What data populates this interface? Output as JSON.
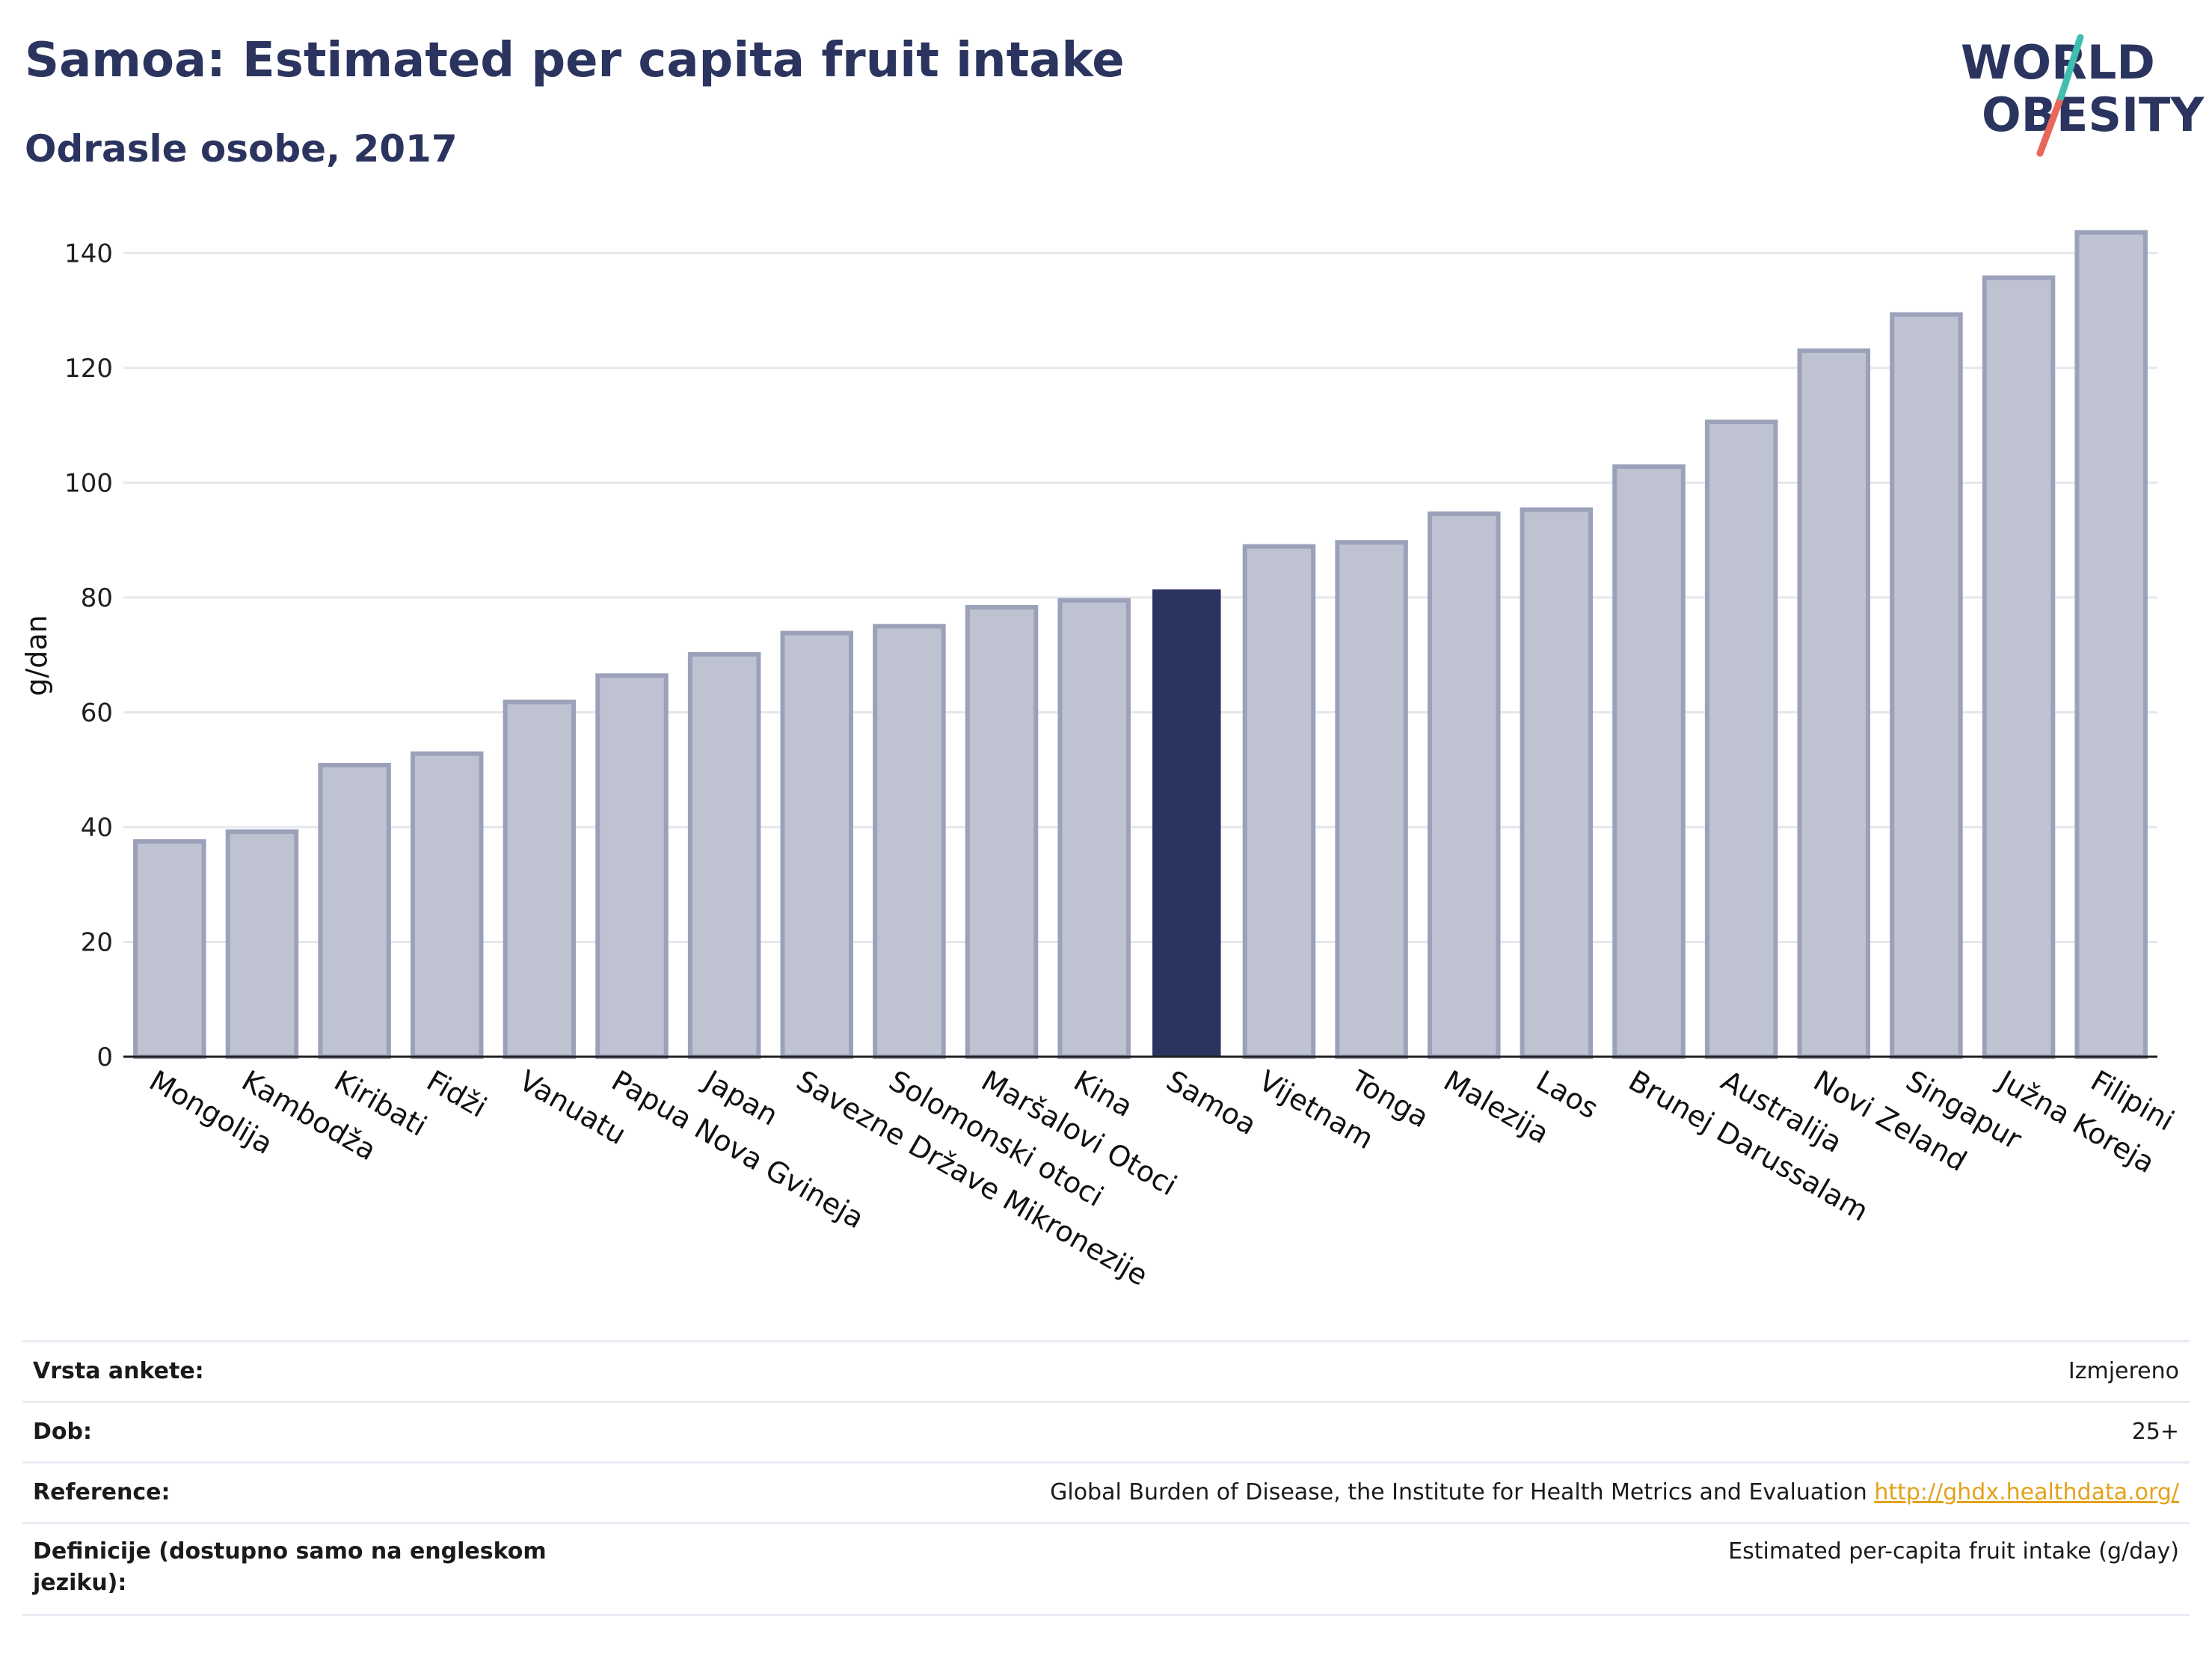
{
  "title": "Samoa: Estimated per capita fruit intake",
  "subtitle": "Odrasle osobe, 2017",
  "logo": {
    "line1": "WORLD",
    "line2": "OBESITY",
    "colors": [
      "#2b345f",
      "#3fbfb0",
      "#e8675a"
    ]
  },
  "colors": {
    "bar": "#bfc2d0",
    "bar_border": "#9ca1ba",
    "highlight": "#2b345f",
    "grid": "#e6e7ee",
    "axis": "#1f1f1f"
  },
  "chart_data": {
    "type": "bar",
    "ylabel": "g/dan",
    "ylim": [
      0,
      145
    ],
    "yticks": [
      0,
      20,
      40,
      60,
      80,
      100,
      120,
      140
    ],
    "grid": true,
    "highlight": "Samoa",
    "categories": [
      "Mongolija",
      "Kambodža",
      "Kiribati",
      "Fidži",
      "Vanuatu",
      "Papua Nova Gvineja",
      "Japan",
      "Savezne Države Mikronezije",
      "Solomonski otoci",
      "Maršalovi Otoci",
      "Kina",
      "Samoa",
      "Vijetnam",
      "Tonga",
      "Malezija",
      "Laos",
      "Brunej Darussalam",
      "Australija",
      "Novi Zeland",
      "Singapur",
      "Južna Koreja",
      "Filipini"
    ],
    "values": [
      37.5,
      39.2,
      50.8,
      52.8,
      61.8,
      66.4,
      70.1,
      73.8,
      75.0,
      78.3,
      79.5,
      81.4,
      88.9,
      89.6,
      94.6,
      95.3,
      102.8,
      110.6,
      123.0,
      129.3,
      135.7,
      143.6
    ]
  },
  "info": [
    {
      "key": "Vrsta ankete:",
      "value": "Izmjereno"
    },
    {
      "key": "Dob:",
      "value": "25+"
    },
    {
      "key": "Reference:",
      "value": "Global Burden of Disease, the Institute for Health Metrics and Evaluation",
      "link": "http://ghdx.healthdata.org/"
    },
    {
      "key": "Definicije (dostupno samo na engleskom jeziku):",
      "value": "Estimated per-capita fruit intake (g/day)"
    }
  ]
}
